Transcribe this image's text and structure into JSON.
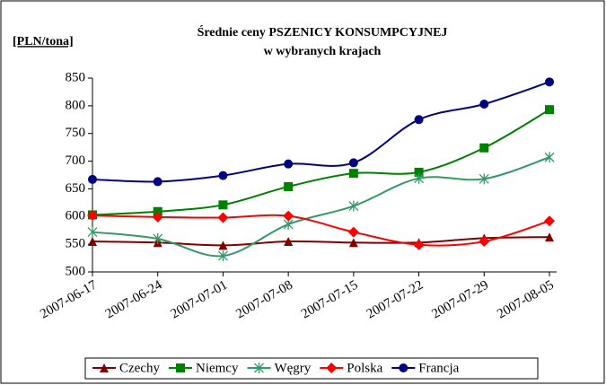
{
  "chart_data": {
    "type": "line",
    "title": [
      "Średnie ceny PSZENICY KONSUMPCYJNEJ",
      "w wybranych krajach"
    ],
    "y_label": "[PLN/tona]",
    "categories": [
      "2007-06-17",
      "2007-06-24",
      "2007-07-01",
      "2007-07-08",
      "2007-07-15",
      "2007-07-22",
      "2007-07-29",
      "2007-08-05"
    ],
    "ylim": [
      500,
      850
    ],
    "yticks": [
      500,
      550,
      600,
      650,
      700,
      750,
      800,
      850
    ],
    "grid": false,
    "legend": "bottom",
    "series": [
      {
        "name": "Czechy",
        "color": "#800000",
        "marker": "triangle",
        "values": [
          555,
          553,
          548,
          555,
          553,
          553,
          561,
          563
        ]
      },
      {
        "name": "Niemcy",
        "color": "#008000",
        "marker": "square",
        "values": [
          603,
          609,
          621,
          654,
          678,
          680,
          724,
          793
        ]
      },
      {
        "name": "Węgry",
        "color": "#339966",
        "marker": "star",
        "values": [
          572,
          560,
          529,
          586,
          619,
          669,
          668,
          707
        ]
      },
      {
        "name": "Polska",
        "color": "#ff0000",
        "marker": "diamond",
        "values": [
          602,
          599,
          598,
          601,
          572,
          549,
          555,
          592
        ]
      },
      {
        "name": "Francja",
        "color": "#000080",
        "marker": "circle",
        "values": [
          667,
          663,
          674,
          695,
          697,
          775,
          803,
          843
        ]
      }
    ]
  }
}
